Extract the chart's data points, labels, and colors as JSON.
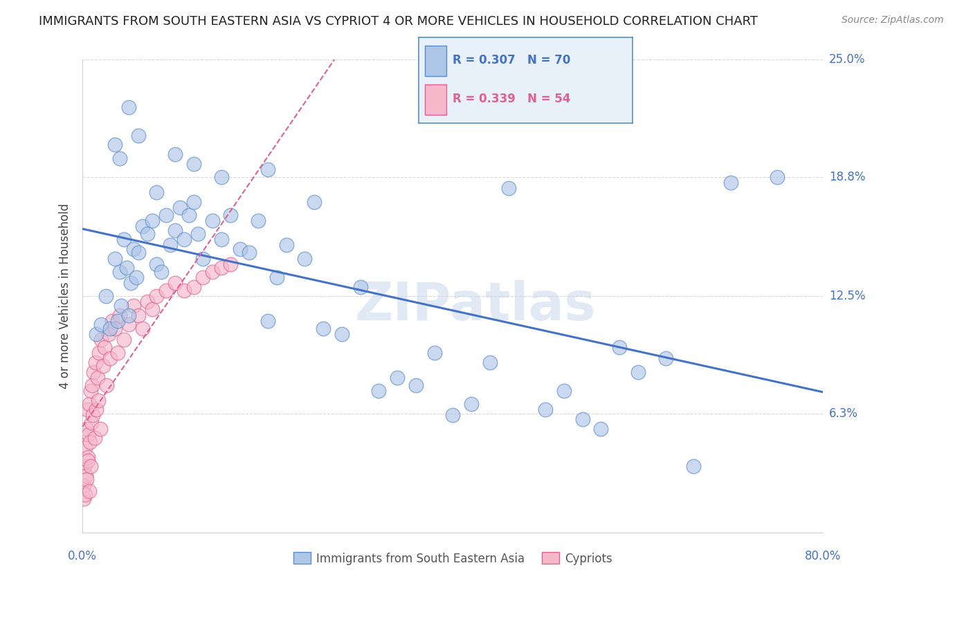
{
  "title": "IMMIGRANTS FROM SOUTH EASTERN ASIA VS CYPRIOT 4 OR MORE VEHICLES IN HOUSEHOLD CORRELATION CHART",
  "source": "Source: ZipAtlas.com",
  "ylabel": "4 or more Vehicles in Household",
  "blue_label": "Immigrants from South Eastern Asia",
  "pink_label": "Cypriots",
  "blue_R": 0.307,
  "blue_N": 70,
  "pink_R": 0.339,
  "pink_N": 54,
  "xlim": [
    0.0,
    80.0
  ],
  "ylim": [
    0.0,
    25.0
  ],
  "yticks": [
    0.0,
    6.3,
    12.5,
    18.8,
    25.0
  ],
  "ytick_labels": [
    "",
    "6.3%",
    "12.5%",
    "18.8%",
    "25.0%"
  ],
  "watermark": "ZIPatlas",
  "blue_fill": "#aec6e8",
  "blue_edge": "#5b8cc8",
  "pink_fill": "#f5b8cb",
  "pink_edge": "#e06090",
  "blue_line_color": "#4472c4",
  "pink_line_color": "#e06090",
  "blue_scatter_x": [
    1.5,
    2.0,
    2.5,
    3.0,
    3.5,
    3.8,
    4.0,
    4.2,
    4.5,
    4.8,
    5.0,
    5.2,
    5.5,
    5.8,
    6.0,
    6.5,
    7.0,
    7.5,
    8.0,
    8.5,
    9.0,
    9.5,
    10.0,
    10.5,
    11.0,
    11.5,
    12.0,
    12.5,
    13.0,
    14.0,
    15.0,
    16.0,
    17.0,
    18.0,
    19.0,
    20.0,
    21.0,
    22.0,
    24.0,
    26.0,
    28.0,
    30.0,
    32.0,
    34.0,
    36.0,
    38.0,
    40.0,
    42.0,
    44.0,
    46.0,
    50.0,
    52.0,
    54.0,
    56.0,
    58.0,
    60.0,
    63.0,
    66.0,
    70.0,
    75.0,
    3.5,
    4.0,
    5.0,
    6.0,
    8.0,
    10.0,
    12.0,
    15.0,
    20.0,
    25.0
  ],
  "blue_scatter_y": [
    10.5,
    11.0,
    12.5,
    10.8,
    14.5,
    11.2,
    13.8,
    12.0,
    15.5,
    14.0,
    11.5,
    13.2,
    15.0,
    13.5,
    14.8,
    16.2,
    15.8,
    16.5,
    14.2,
    13.8,
    16.8,
    15.2,
    16.0,
    17.2,
    15.5,
    16.8,
    17.5,
    15.8,
    14.5,
    16.5,
    15.5,
    16.8,
    15.0,
    14.8,
    16.5,
    11.2,
    13.5,
    15.2,
    14.5,
    10.8,
    10.5,
    13.0,
    7.5,
    8.2,
    7.8,
    9.5,
    6.2,
    6.8,
    9.0,
    18.2,
    6.5,
    7.5,
    6.0,
    5.5,
    9.8,
    8.5,
    9.2,
    3.5,
    18.5,
    18.8,
    20.5,
    19.8,
    22.5,
    21.0,
    18.0,
    20.0,
    19.5,
    18.8,
    19.2,
    17.5
  ],
  "pink_scatter_x": [
    0.1,
    0.15,
    0.2,
    0.25,
    0.3,
    0.35,
    0.4,
    0.45,
    0.5,
    0.55,
    0.6,
    0.65,
    0.7,
    0.75,
    0.8,
    0.85,
    0.9,
    0.95,
    1.0,
    1.1,
    1.2,
    1.3,
    1.4,
    1.5,
    1.6,
    1.7,
    1.8,
    1.9,
    2.0,
    2.2,
    2.4,
    2.6,
    2.8,
    3.0,
    3.2,
    3.5,
    3.8,
    4.0,
    4.5,
    5.0,
    5.5,
    6.0,
    6.5,
    7.0,
    7.5,
    8.0,
    9.0,
    10.0,
    11.0,
    12.0,
    13.0,
    14.0,
    15.0,
    16.0
  ],
  "pink_scatter_y": [
    2.5,
    1.8,
    3.5,
    2.0,
    4.5,
    3.0,
    5.5,
    2.8,
    6.5,
    4.0,
    3.8,
    5.2,
    2.2,
    6.8,
    4.8,
    7.5,
    3.5,
    5.8,
    7.8,
    6.2,
    8.5,
    5.0,
    9.0,
    6.5,
    8.2,
    7.0,
    9.5,
    5.5,
    10.2,
    8.8,
    9.8,
    7.8,
    10.5,
    9.2,
    11.2,
    10.8,
    9.5,
    11.5,
    10.2,
    11.0,
    12.0,
    11.5,
    10.8,
    12.2,
    11.8,
    12.5,
    12.8,
    13.2,
    12.8,
    13.0,
    13.5,
    13.8,
    14.0,
    14.2
  ],
  "background_color": "#ffffff",
  "grid_color": "#d8d8d8",
  "title_color": "#222222",
  "ylabel_color": "#444444",
  "tick_color": "#4472c4",
  "source_color": "#888888",
  "watermark_color": "#c8d8ec"
}
